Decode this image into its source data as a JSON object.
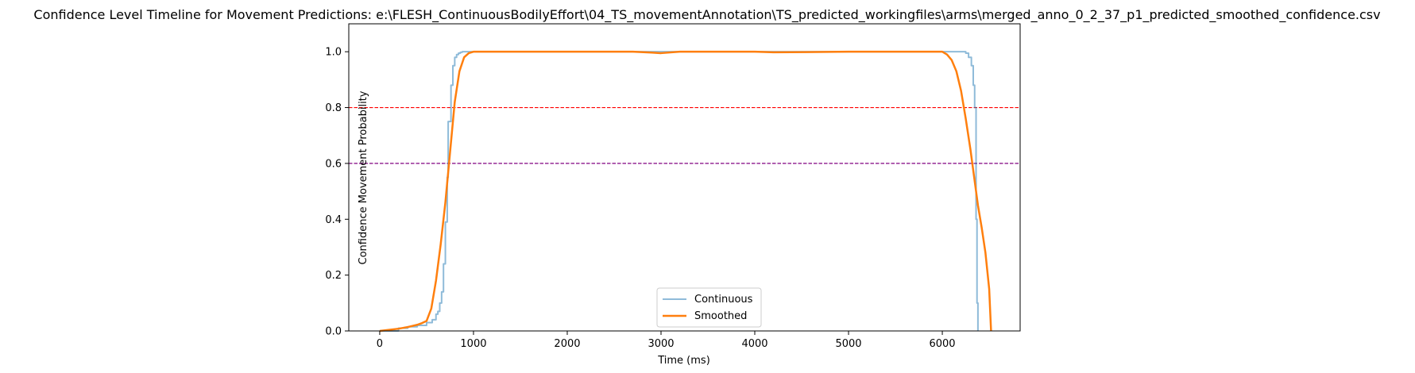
{
  "chart_data": {
    "type": "line",
    "title": "Confidence Level Timeline for Movement Predictions: e:\\FLESH_ContinuousBodilyEffort\\04_TS_movementAnnotation\\TS_predicted_workingfiles\\arms\\merged_anno_0_2_37_p1_predicted_smoothed_confidence.csv",
    "xlabel": "Time (ms)",
    "ylabel": "Confidence Movement Probability",
    "xlim": [
      -330,
      6830
    ],
    "ylim": [
      0,
      1.1
    ],
    "xticks": [
      0,
      1000,
      2000,
      3000,
      4000,
      5000,
      6000
    ],
    "yticks": [
      "0.0",
      "0.2",
      "0.4",
      "0.6",
      "0.8",
      "1.0"
    ],
    "grid": false,
    "legend_position": "bottom-center",
    "thresholds": [
      {
        "y": 0.8,
        "color": "#ff0000",
        "style": "dashed"
      },
      {
        "y": 0.6,
        "color": "#800080",
        "style": "dashed"
      }
    ],
    "series": [
      {
        "name": "Continuous",
        "color": "#1f77b4",
        "opacity": 0.5,
        "step": true,
        "x": [
          0,
          200,
          300,
          400,
          500,
          560,
          600,
          620,
          640,
          660,
          680,
          700,
          720,
          730,
          740,
          760,
          780,
          800,
          820,
          840,
          860,
          880,
          900,
          960,
          1000,
          2000,
          3000,
          4000,
          5000,
          6000,
          6100,
          6200,
          6250,
          6280,
          6310,
          6330,
          6345,
          6360,
          6370,
          6380
        ],
        "y": [
          0.0,
          0.01,
          0.015,
          0.02,
          0.03,
          0.04,
          0.06,
          0.07,
          0.1,
          0.14,
          0.24,
          0.39,
          0.55,
          0.75,
          0.75,
          0.88,
          0.95,
          0.98,
          0.99,
          0.995,
          0.998,
          1.0,
          1.0,
          1.0,
          1.0,
          1.0,
          1.0,
          1.0,
          1.0,
          1.0,
          1.0,
          1.0,
          0.995,
          0.98,
          0.95,
          0.88,
          0.8,
          0.4,
          0.1,
          0.0
        ]
      },
      {
        "name": "Smoothed",
        "color": "#ff7f0e",
        "opacity": 1,
        "step": false,
        "x": [
          0,
          200,
          300,
          400,
          450,
          500,
          550,
          600,
          650,
          700,
          750,
          800,
          850,
          900,
          950,
          1000,
          1200,
          2000,
          2700,
          2900,
          3000,
          3200,
          4000,
          4200,
          5000,
          5800,
          6000,
          6050,
          6100,
          6150,
          6200,
          6250,
          6300,
          6340,
          6380,
          6420,
          6460,
          6500,
          6520
        ],
        "y": [
          0.0,
          0.008,
          0.014,
          0.022,
          0.028,
          0.036,
          0.08,
          0.18,
          0.31,
          0.46,
          0.64,
          0.82,
          0.93,
          0.98,
          0.995,
          1.0,
          1.0,
          1.0,
          1.0,
          0.997,
          0.995,
          1.0,
          1.0,
          0.998,
          1.0,
          1.0,
          1.0,
          0.99,
          0.97,
          0.93,
          0.86,
          0.76,
          0.65,
          0.55,
          0.45,
          0.37,
          0.28,
          0.15,
          0.0
        ]
      }
    ]
  }
}
